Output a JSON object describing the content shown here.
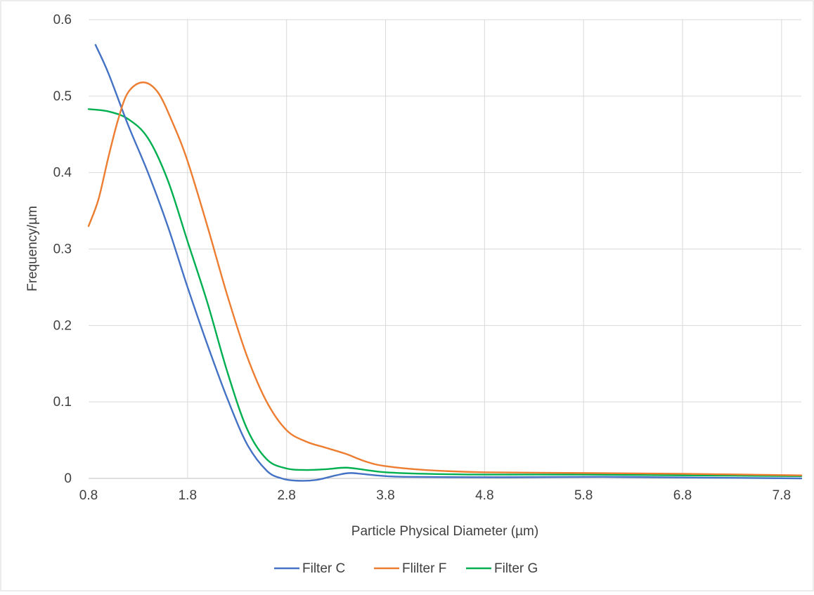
{
  "chart_data": {
    "type": "line",
    "title": "",
    "xlabel": "Particle Physical Diameter (µm)",
    "ylabel": "Frequency/µm",
    "xlim": [
      0.8,
      8.0
    ],
    "ylim": [
      0,
      0.6
    ],
    "x_ticks": [
      "0.8",
      "1.8",
      "2.8",
      "3.8",
      "4.8",
      "5.8",
      "6.8",
      "7.8"
    ],
    "y_ticks": [
      "0",
      "0.1",
      "0.2",
      "0.3",
      "0.4",
      "0.5",
      "0.6"
    ],
    "grid": true,
    "legend_position": "bottom",
    "series": [
      {
        "name": "Filter C",
        "color": "#4472C4",
        "points": [
          [
            0.87,
            0.567
          ],
          [
            1.0,
            0.53
          ],
          [
            1.2,
            0.462
          ],
          [
            1.4,
            0.4
          ],
          [
            1.6,
            0.33
          ],
          [
            1.8,
            0.25
          ],
          [
            2.0,
            0.175
          ],
          [
            2.2,
            0.105
          ],
          [
            2.4,
            0.045
          ],
          [
            2.6,
            0.01
          ],
          [
            2.75,
            0.0
          ],
          [
            2.9,
            -0.003
          ],
          [
            3.1,
            -0.002
          ],
          [
            3.3,
            0.004
          ],
          [
            3.45,
            0.007
          ],
          [
            3.7,
            0.004
          ],
          [
            4.0,
            0.002
          ],
          [
            5.0,
            0.0015
          ],
          [
            6.0,
            0.002
          ],
          [
            7.0,
            0.001
          ],
          [
            8.0,
            0.0
          ]
        ]
      },
      {
        "name": "Flilter F",
        "color": "#ED7D31",
        "points": [
          [
            0.8,
            0.33
          ],
          [
            0.9,
            0.365
          ],
          [
            1.0,
            0.42
          ],
          [
            1.1,
            0.47
          ],
          [
            1.2,
            0.505
          ],
          [
            1.35,
            0.518
          ],
          [
            1.5,
            0.505
          ],
          [
            1.65,
            0.465
          ],
          [
            1.8,
            0.415
          ],
          [
            2.0,
            0.33
          ],
          [
            2.2,
            0.24
          ],
          [
            2.4,
            0.16
          ],
          [
            2.6,
            0.1
          ],
          [
            2.8,
            0.063
          ],
          [
            3.0,
            0.048
          ],
          [
            3.2,
            0.04
          ],
          [
            3.4,
            0.032
          ],
          [
            3.6,
            0.022
          ],
          [
            3.8,
            0.016
          ],
          [
            4.2,
            0.011
          ],
          [
            4.8,
            0.008
          ],
          [
            5.8,
            0.007
          ],
          [
            6.8,
            0.006
          ],
          [
            8.0,
            0.004
          ]
        ]
      },
      {
        "name": "Filter G",
        "color": "#00B050",
        "points": [
          [
            0.8,
            0.483
          ],
          [
            1.0,
            0.48
          ],
          [
            1.2,
            0.47
          ],
          [
            1.4,
            0.445
          ],
          [
            1.6,
            0.39
          ],
          [
            1.8,
            0.31
          ],
          [
            2.0,
            0.23
          ],
          [
            2.2,
            0.14
          ],
          [
            2.4,
            0.065
          ],
          [
            2.6,
            0.025
          ],
          [
            2.8,
            0.013
          ],
          [
            3.0,
            0.011
          ],
          [
            3.2,
            0.012
          ],
          [
            3.4,
            0.014
          ],
          [
            3.6,
            0.011
          ],
          [
            3.8,
            0.008
          ],
          [
            4.2,
            0.006
          ],
          [
            4.8,
            0.005
          ],
          [
            5.8,
            0.005
          ],
          [
            6.8,
            0.004
          ],
          [
            8.0,
            0.003
          ]
        ]
      }
    ]
  }
}
